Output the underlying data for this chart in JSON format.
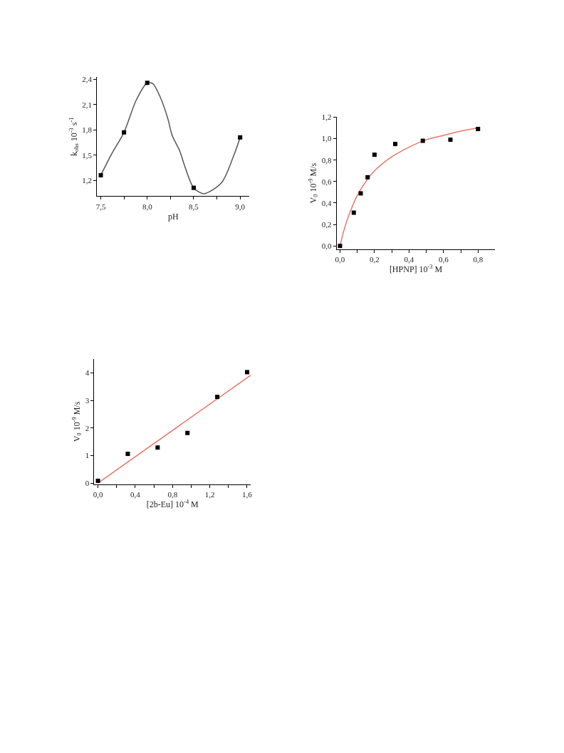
{
  "chart_data": [
    {
      "type": "scatter",
      "xlabel": "pH",
      "ylabel": "k$_{obs}$ 10$^{-3}$ s$^{-1}$",
      "xlim": [
        7.46,
        9.1
      ],
      "ylim": [
        1.01,
        2.43
      ],
      "xticks": [
        {
          "value": 7.5,
          "label": "7,5"
        },
        {
          "value": 7.75,
          "label": null
        },
        {
          "value": 8.0,
          "label": "8,0"
        },
        {
          "value": 8.25,
          "label": null
        },
        {
          "value": 8.5,
          "label": "8,5"
        },
        {
          "value": 8.75,
          "label": null
        },
        {
          "value": 9.0,
          "label": "9,0"
        }
      ],
      "yticks": [
        {
          "value": 1.2,
          "label": "1,2"
        },
        {
          "value": 1.5,
          "label": "1,5"
        },
        {
          "value": 1.8,
          "label": "1,8"
        },
        {
          "value": 2.1,
          "label": "2,1"
        },
        {
          "value": 2.4,
          "label": "2,4"
        }
      ],
      "series": [
        {
          "type": "line",
          "color": "#555555",
          "marker": "none",
          "line_style": "solid",
          "x": [
            7.5,
            7.62,
            7.75,
            7.88,
            8.0,
            8.06,
            8.14,
            8.22,
            8.27,
            8.35,
            8.4,
            8.5,
            8.61,
            8.8,
            8.93,
            9.0
          ],
          "values": [
            1.26,
            1.52,
            1.77,
            2.15,
            2.36,
            2.35,
            2.19,
            1.94,
            1.73,
            1.55,
            1.38,
            1.11,
            1.04,
            1.17,
            1.49,
            1.71
          ]
        },
        {
          "color": "#000000",
          "marker": "square",
          "x": [
            7.5,
            7.75,
            8.0,
            8.5,
            9.0
          ],
          "values": [
            1.26,
            1.77,
            2.36,
            1.11,
            1.71
          ]
        }
      ]
    },
    {
      "type": "scatter",
      "xlabel": "[HPNP] 10$^{-3}$ M",
      "ylabel": "V$_{0}$ 10$^{-9}$ M/s",
      "xlim": [
        -0.02,
        0.9
      ],
      "ylim": [
        -0.03,
        1.2
      ],
      "xticks": [
        {
          "value": 0.0,
          "label": "0,0"
        },
        {
          "value": 0.1,
          "label": null
        },
        {
          "value": 0.2,
          "label": "0,2"
        },
        {
          "value": 0.3,
          "label": null
        },
        {
          "value": 0.4,
          "label": "0,4"
        },
        {
          "value": 0.5,
          "label": null
        },
        {
          "value": 0.6,
          "label": "0,6"
        },
        {
          "value": 0.7,
          "label": null
        },
        {
          "value": 0.8,
          "label": "0,8"
        }
      ],
      "yticks": [
        {
          "value": 0.0,
          "label": "0,0"
        },
        {
          "value": 0.2,
          "label": "0,2"
        },
        {
          "value": 0.4,
          "label": "0,4"
        },
        {
          "value": 0.6,
          "label": "0,6"
        },
        {
          "value": 0.8,
          "label": "0,8"
        },
        {
          "value": 1.0,
          "label": "1,0"
        },
        {
          "value": 1.2,
          "label": "1,2"
        }
      ],
      "series": [
        {
          "type": "line",
          "color": "#e8766a",
          "marker": "none",
          "line_style": "solid",
          "x": [
            0,
            0.02,
            0.05,
            0.1,
            0.15,
            0.2,
            0.3,
            0.4,
            0.5,
            0.6,
            0.7,
            0.8
          ],
          "values": [
            0,
            0.13,
            0.28,
            0.47,
            0.6,
            0.7,
            0.83,
            0.92,
            0.99,
            1.03,
            1.07,
            1.1
          ]
        },
        {
          "color": "#000000",
          "marker": "square",
          "x": [
            0,
            0.08,
            0.12,
            0.16,
            0.2,
            0.32,
            0.48,
            0.64,
            0.8
          ],
          "values": [
            0,
            0.31,
            0.49,
            0.64,
            0.85,
            0.95,
            0.98,
            0.99,
            1.09
          ]
        }
      ]
    },
    {
      "type": "scatter",
      "xlabel": "[2b-Eu] 10$^{-4}$ M",
      "ylabel": "V$_{0}$ 10$^{-9}$ M/s",
      "xlim": [
        -0.04,
        1.64
      ],
      "ylim": [
        -0.04,
        4.5
      ],
      "xticks": [
        {
          "value": 0.0,
          "label": "0,0"
        },
        {
          "value": 0.2,
          "label": null
        },
        {
          "value": 0.4,
          "label": "0,4"
        },
        {
          "value": 0.6,
          "label": null
        },
        {
          "value": 0.8,
          "label": "0,8"
        },
        {
          "value": 1.0,
          "label": null
        },
        {
          "value": 1.2,
          "label": "1,2"
        },
        {
          "value": 1.4,
          "label": null
        },
        {
          "value": 1.6,
          "label": "1,6"
        }
      ],
      "yticks": [
        0,
        1,
        2,
        3,
        4
      ],
      "series": [
        {
          "type": "line",
          "color": "#e8766a",
          "marker": "none",
          "line_style": "solid",
          "x": [
            0,
            1.64
          ],
          "values": [
            0,
            3.92
          ]
        },
        {
          "color": "#000000",
          "marker": "square",
          "x": [
            0,
            0.32,
            0.64,
            0.96,
            1.28,
            1.6
          ],
          "values": [
            0.08,
            1.06,
            1.29,
            1.82,
            3.13,
            4.03
          ]
        }
      ]
    }
  ]
}
